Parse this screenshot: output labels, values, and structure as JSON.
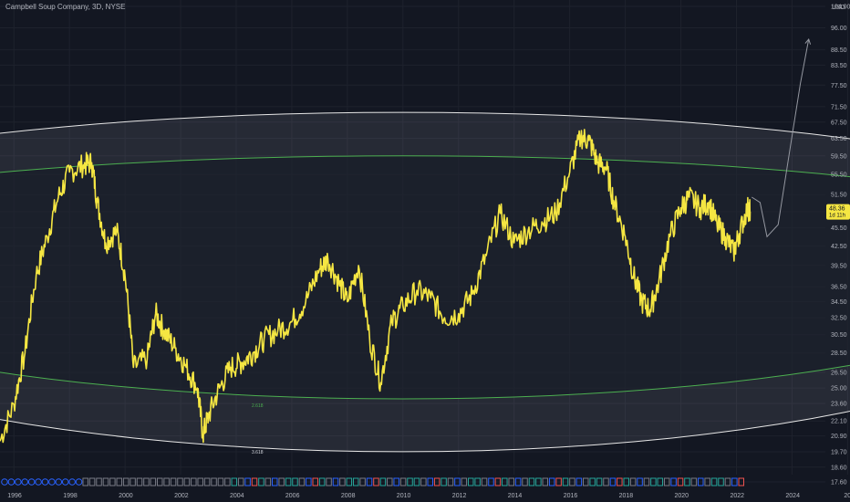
{
  "header": {
    "title": "Campbell Soup Company, 3D, NYSE"
  },
  "colors": {
    "background": "#131722",
    "price": "#f5e642",
    "outer_ellipse": "#e6e6e6",
    "inner_ellipse": "#4caf50",
    "badge_bg": "#f5e642",
    "badge_text": "#131722",
    "forecast": "#9598a1"
  },
  "chart_data": {
    "type": "line",
    "title": "Campbell Soup Company, 3D, NYSE",
    "y_axis": {
      "currency": "USD",
      "scale": "log",
      "ylim": [
        17.6,
        104
      ],
      "ticks": [
        "104.00",
        "96.00",
        "88.50",
        "83.50",
        "77.50",
        "71.50",
        "67.50",
        "63.50",
        "59.50",
        "55.50",
        "51.50",
        "48.30",
        "45.50",
        "42.50",
        "39.50",
        "36.50",
        "34.50",
        "32.50",
        "30.50",
        "28.50",
        "26.50",
        "25.00",
        "23.60",
        "22.10",
        "20.90",
        "19.70",
        "18.60",
        "17.60"
      ]
    },
    "x_axis": {
      "ticks": [
        "1996",
        "1998",
        "2000",
        "2002",
        "2004",
        "2006",
        "2008",
        "2010",
        "2012",
        "2014",
        "2016",
        "2018",
        "2020",
        "2022",
        "2024",
        "202"
      ],
      "xlim": [
        1995.5,
        2025.2
      ]
    },
    "grid": true,
    "last_price": {
      "value": "48.36",
      "countdown": "1d 11h"
    },
    "annotations": [
      {
        "text": "3.618",
        "type": "outer-ellipse-label"
      },
      {
        "text": "2.618",
        "type": "inner-ellipse-label"
      }
    ],
    "series": [
      {
        "values": [
          [
            1995.5,
            20.5
          ],
          [
            1996.0,
            23.5
          ],
          [
            1996.4,
            28.5
          ],
          [
            1996.8,
            38
          ],
          [
            1997.2,
            44
          ],
          [
            1997.6,
            51
          ],
          [
            1998.0,
            56
          ],
          [
            1998.5,
            57.5
          ],
          [
            1998.8,
            58
          ],
          [
            1999.0,
            50
          ],
          [
            1999.3,
            43
          ],
          [
            1999.7,
            45
          ],
          [
            2000.0,
            38
          ],
          [
            2000.3,
            27
          ],
          [
            2000.8,
            28
          ],
          [
            2001.1,
            33
          ],
          [
            2001.4,
            31
          ],
          [
            2001.8,
            29
          ],
          [
            2002.2,
            27
          ],
          [
            2002.6,
            25
          ],
          [
            2002.8,
            21
          ],
          [
            2003.0,
            22.5
          ],
          [
            2003.4,
            25
          ],
          [
            2003.8,
            27
          ],
          [
            2004.2,
            27.5
          ],
          [
            2004.6,
            28.5
          ],
          [
            2005.0,
            30
          ],
          [
            2005.5,
            31
          ],
          [
            2006.0,
            32
          ],
          [
            2006.5,
            34.5
          ],
          [
            2007.0,
            39
          ],
          [
            2007.3,
            40.5
          ],
          [
            2007.7,
            37
          ],
          [
            2008.0,
            34.5
          ],
          [
            2008.4,
            39.5
          ],
          [
            2008.8,
            30
          ],
          [
            2009.2,
            25.5
          ],
          [
            2009.6,
            32
          ],
          [
            2010.0,
            34
          ],
          [
            2010.5,
            36
          ],
          [
            2011.0,
            35
          ],
          [
            2011.5,
            32.5
          ],
          [
            2012.0,
            33
          ],
          [
            2012.5,
            35.5
          ],
          [
            2013.0,
            41
          ],
          [
            2013.5,
            48
          ],
          [
            2014.0,
            43
          ],
          [
            2014.5,
            45
          ],
          [
            2015.0,
            46.5
          ],
          [
            2015.5,
            48
          ],
          [
            2016.0,
            56
          ],
          [
            2016.4,
            64
          ],
          [
            2016.7,
            63
          ],
          [
            2017.0,
            58
          ],
          [
            2017.3,
            57
          ],
          [
            2017.6,
            50
          ],
          [
            2018.0,
            44
          ],
          [
            2018.3,
            38
          ],
          [
            2018.6,
            34.5
          ],
          [
            2018.9,
            33.5
          ],
          [
            2019.2,
            37
          ],
          [
            2019.6,
            44
          ],
          [
            2020.0,
            49
          ],
          [
            2020.3,
            51
          ],
          [
            2020.7,
            49
          ],
          [
            2021.0,
            50
          ],
          [
            2021.3,
            46
          ],
          [
            2021.6,
            44
          ],
          [
            2021.9,
            41.5
          ],
          [
            2022.1,
            44.5
          ],
          [
            2022.4,
            49
          ],
          [
            2022.5,
            48.36
          ]
        ]
      }
    ]
  },
  "forecast": {
    "points": [
      [
        2022.55,
        51
      ],
      [
        2022.85,
        50
      ],
      [
        2023.1,
        44
      ],
      [
        2023.5,
        46
      ],
      [
        2023.9,
        60
      ],
      [
        2024.3,
        78
      ],
      [
        2024.6,
        92
      ]
    ]
  },
  "ellipses": {
    "outer": {
      "cx": 2010.0,
      "cy": 42.5,
      "rx": 27.0,
      "ry_top": 70,
      "ry_bottom": 19.7
    },
    "inner": {
      "cx": 2010.0,
      "cy": 42.0,
      "rx": 25.5,
      "ry_top": 59.5,
      "ry_bottom": 24.0
    }
  },
  "event_markers": {
    "row": "dividends/earnings",
    "count": 110
  }
}
